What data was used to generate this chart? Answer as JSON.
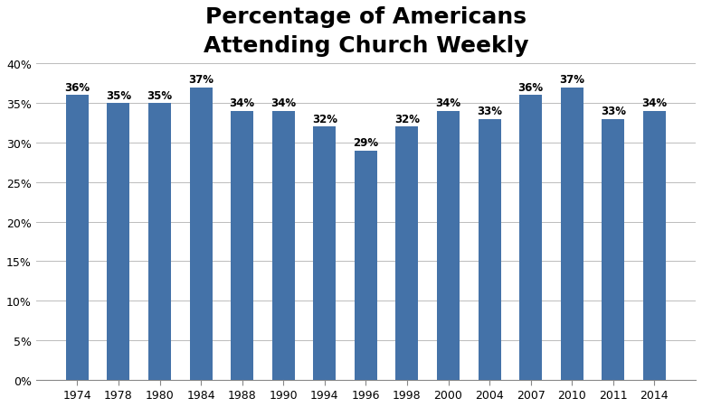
{
  "title": "Percentage of Americans\nAttending Church Weekly",
  "categories": [
    "1974",
    "1978",
    "1980",
    "1984",
    "1988",
    "1990",
    "1994",
    "1996",
    "1998",
    "2000",
    "2004",
    "2007",
    "2010",
    "2011",
    "2014"
  ],
  "values": [
    36,
    35,
    35,
    37,
    34,
    34,
    32,
    29,
    32,
    34,
    33,
    36,
    37,
    33,
    34
  ],
  "bar_color": "#4472a8",
  "ylim": [
    0,
    40
  ],
  "yticks": [
    0,
    5,
    10,
    15,
    20,
    25,
    30,
    35,
    40
  ],
  "title_fontsize": 18,
  "label_fontsize": 8.5,
  "tick_fontsize": 9,
  "background_color": "#ffffff",
  "grid_color": "#bbbbbb"
}
